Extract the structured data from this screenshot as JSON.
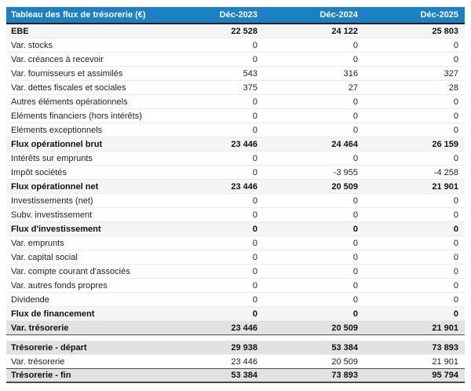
{
  "chart_data": {
    "type": "table",
    "title": "Tableau des flux de trésorerie (€)",
    "columns": [
      "Déc-2023",
      "Déc-2024",
      "Déc-2025"
    ],
    "sections": [
      {
        "rows": [
          {
            "label": "EBE",
            "style": "subtotal",
            "values": [
              "22 528",
              "24 122",
              "25 803"
            ]
          },
          {
            "label": "Var. stocks",
            "style": "normal",
            "values": [
              "0",
              "0",
              "0"
            ]
          },
          {
            "label": "Var. créances à recevoir",
            "style": "normal",
            "values": [
              "0",
              "0",
              "0"
            ]
          },
          {
            "label": "Var. fournisseurs et assimilés",
            "style": "normal",
            "values": [
              "543",
              "316",
              "327"
            ]
          },
          {
            "label": "Var. dettes fiscales et sociales",
            "style": "normal",
            "values": [
              "375",
              "27",
              "28"
            ]
          },
          {
            "label": "Autres éléments opérationnels",
            "style": "normal",
            "values": [
              "0",
              "0",
              "0"
            ]
          },
          {
            "label": "Eléments financiers (hors intérêts)",
            "style": "normal",
            "values": [
              "0",
              "0",
              "0"
            ]
          },
          {
            "label": "Eléments exceptionnels",
            "style": "normal",
            "values": [
              "0",
              "0",
              "0"
            ]
          },
          {
            "label": "Flux opérationnel brut",
            "style": "subtotal",
            "values": [
              "23 446",
              "24 464",
              "26 159"
            ]
          },
          {
            "label": "Intérêts sur emprunts",
            "style": "normal",
            "values": [
              "0",
              "0",
              "0"
            ]
          },
          {
            "label": "Impôt sociétés",
            "style": "normal",
            "values": [
              "0",
              "-3 955",
              "-4 258"
            ]
          },
          {
            "label": "Flux opérationnel net",
            "style": "subtotal",
            "values": [
              "23 446",
              "20 509",
              "21 901"
            ]
          },
          {
            "label": "Investissements (net)",
            "style": "normal",
            "values": [
              "0",
              "0",
              "0"
            ]
          },
          {
            "label": "Subv. investissement",
            "style": "normal",
            "values": [
              "0",
              "0",
              "0"
            ]
          },
          {
            "label": "Flux d'investissement",
            "style": "subtotal",
            "values": [
              "0",
              "0",
              "0"
            ]
          },
          {
            "label": "Var. emprunts",
            "style": "normal",
            "values": [
              "0",
              "0",
              "0"
            ]
          },
          {
            "label": "Var. capital social",
            "style": "normal",
            "values": [
              "0",
              "0",
              "0"
            ]
          },
          {
            "label": "Var. compte courant d'associés",
            "style": "normal",
            "values": [
              "0",
              "0",
              "0"
            ]
          },
          {
            "label": "Var. autres fonds propres",
            "style": "normal",
            "values": [
              "0",
              "0",
              "0"
            ]
          },
          {
            "label": "Dividende",
            "style": "normal",
            "values": [
              "0",
              "0",
              "0"
            ]
          },
          {
            "label": "Flux de financement",
            "style": "subtotal",
            "values": [
              "0",
              "0",
              "0"
            ]
          },
          {
            "label": "Var. trésorerie",
            "style": "strong",
            "dark_bottom": true,
            "values": [
              "23 446",
              "20 509",
              "21 901"
            ]
          }
        ]
      },
      {
        "rows": [
          {
            "label": "Trésorerie - départ",
            "style": "strong",
            "values": [
              "29 938",
              "53 384",
              "73 893"
            ]
          },
          {
            "label": "Var. trésorerie",
            "style": "normal",
            "dark_bottom": true,
            "values": [
              "23 446",
              "20 509",
              "21 901"
            ]
          },
          {
            "label": "Trésorerie - fin",
            "style": "strong",
            "dark_bottom": true,
            "values": [
              "53 384",
              "73 893",
              "95 794"
            ]
          }
        ]
      }
    ]
  },
  "colors": {
    "header_bg": "#1c80c4",
    "header_text": "#ffffff",
    "subtotal_row_bg": "#f5f5f5",
    "strong_row_bg": "#e2e2e2",
    "dark_border": "#4a4a4a"
  }
}
